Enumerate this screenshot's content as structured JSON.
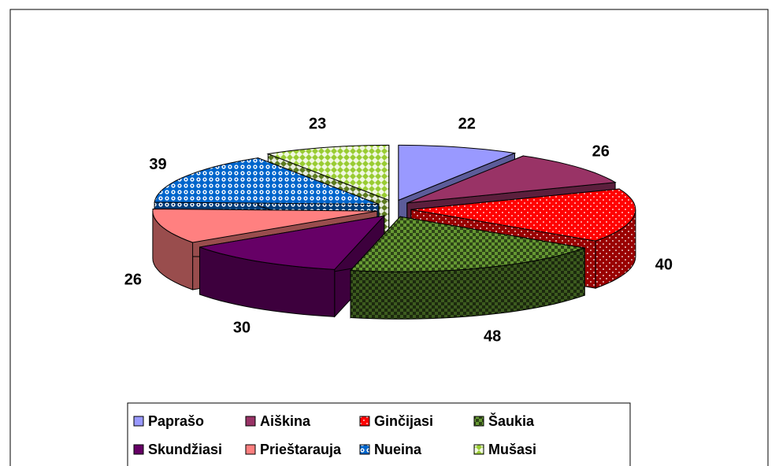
{
  "chart_data": {
    "type": "pie",
    "categories": [
      "Paprašo",
      "Aiškina",
      "Ginčijasi",
      "Šaukia",
      "Skundžiasi",
      "Prieštarauja",
      "Nueina",
      "Mušasi"
    ],
    "values": [
      22,
      26,
      40,
      48,
      30,
      26,
      39,
      23
    ],
    "colors": [
      "#9999ff",
      "#993366",
      "#ff0000",
      "#669933",
      "#660066",
      "#ff8080",
      "#0066cc",
      "#99cc33"
    ],
    "patterns": [
      "solid",
      "solid",
      "dots",
      "checker",
      "solid",
      "solid",
      "bubbles",
      "diamonds"
    ],
    "legend": "bottom"
  }
}
